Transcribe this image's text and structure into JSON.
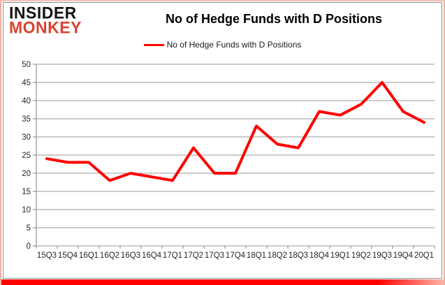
{
  "logo": {
    "line1": "INSIDER",
    "line2": "MONKEY"
  },
  "header": {
    "title": "No of Hedge Funds with D Positions"
  },
  "legend": {
    "label": "No of Hedge Funds with D Positions"
  },
  "colors": {
    "line_red": "#fe0000",
    "logo_red": "#d8432f",
    "grid_gray": "#999999",
    "axis_gray": "#808080",
    "label_color": "#262626"
  },
  "chart_data": {
    "type": "line",
    "title": "No of Hedge Funds with D Positions",
    "categories": [
      "15Q3",
      "15Q4",
      "16Q1",
      "16Q2",
      "16Q3",
      "16Q4",
      "17Q1",
      "17Q2",
      "17Q3",
      "17Q4",
      "18Q1",
      "18Q2",
      "18Q3",
      "18Q4",
      "19Q1",
      "19Q2",
      "19Q3",
      "19Q4",
      "20Q1"
    ],
    "series": [
      {
        "name": "No of Hedge Funds with D Positions",
        "color": "#fe0000",
        "values": [
          24,
          23,
          23,
          18,
          20,
          19,
          18,
          27,
          20,
          20,
          33,
          28,
          27,
          37,
          36,
          39,
          45,
          37,
          34
        ]
      }
    ],
    "xlabel": "",
    "ylabel": "",
    "ylim": [
      0,
      50
    ],
    "ytick_step": 5,
    "grid": true,
    "legend_position": "top-center"
  }
}
